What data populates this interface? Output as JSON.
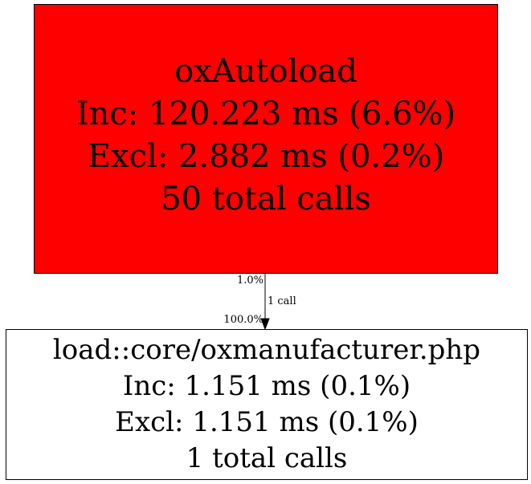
{
  "nodes": [
    {
      "name": "oxAutoload",
      "inc": "Inc: 120.223 ms (6.6%)",
      "excl": "Excl: 2.882 ms (0.2%)",
      "calls": "50 total calls",
      "fill": "#ff0000"
    },
    {
      "name": "load::core/oxmanufacturer.php",
      "inc": "Inc: 1.151 ms (0.1%)",
      "excl": "Excl: 1.151 ms (0.1%)",
      "calls": "1 total calls",
      "fill": "#ffffff"
    }
  ],
  "edge": {
    "tail_label": "1.0%",
    "label": "1 call",
    "head_label": "100.0%"
  }
}
